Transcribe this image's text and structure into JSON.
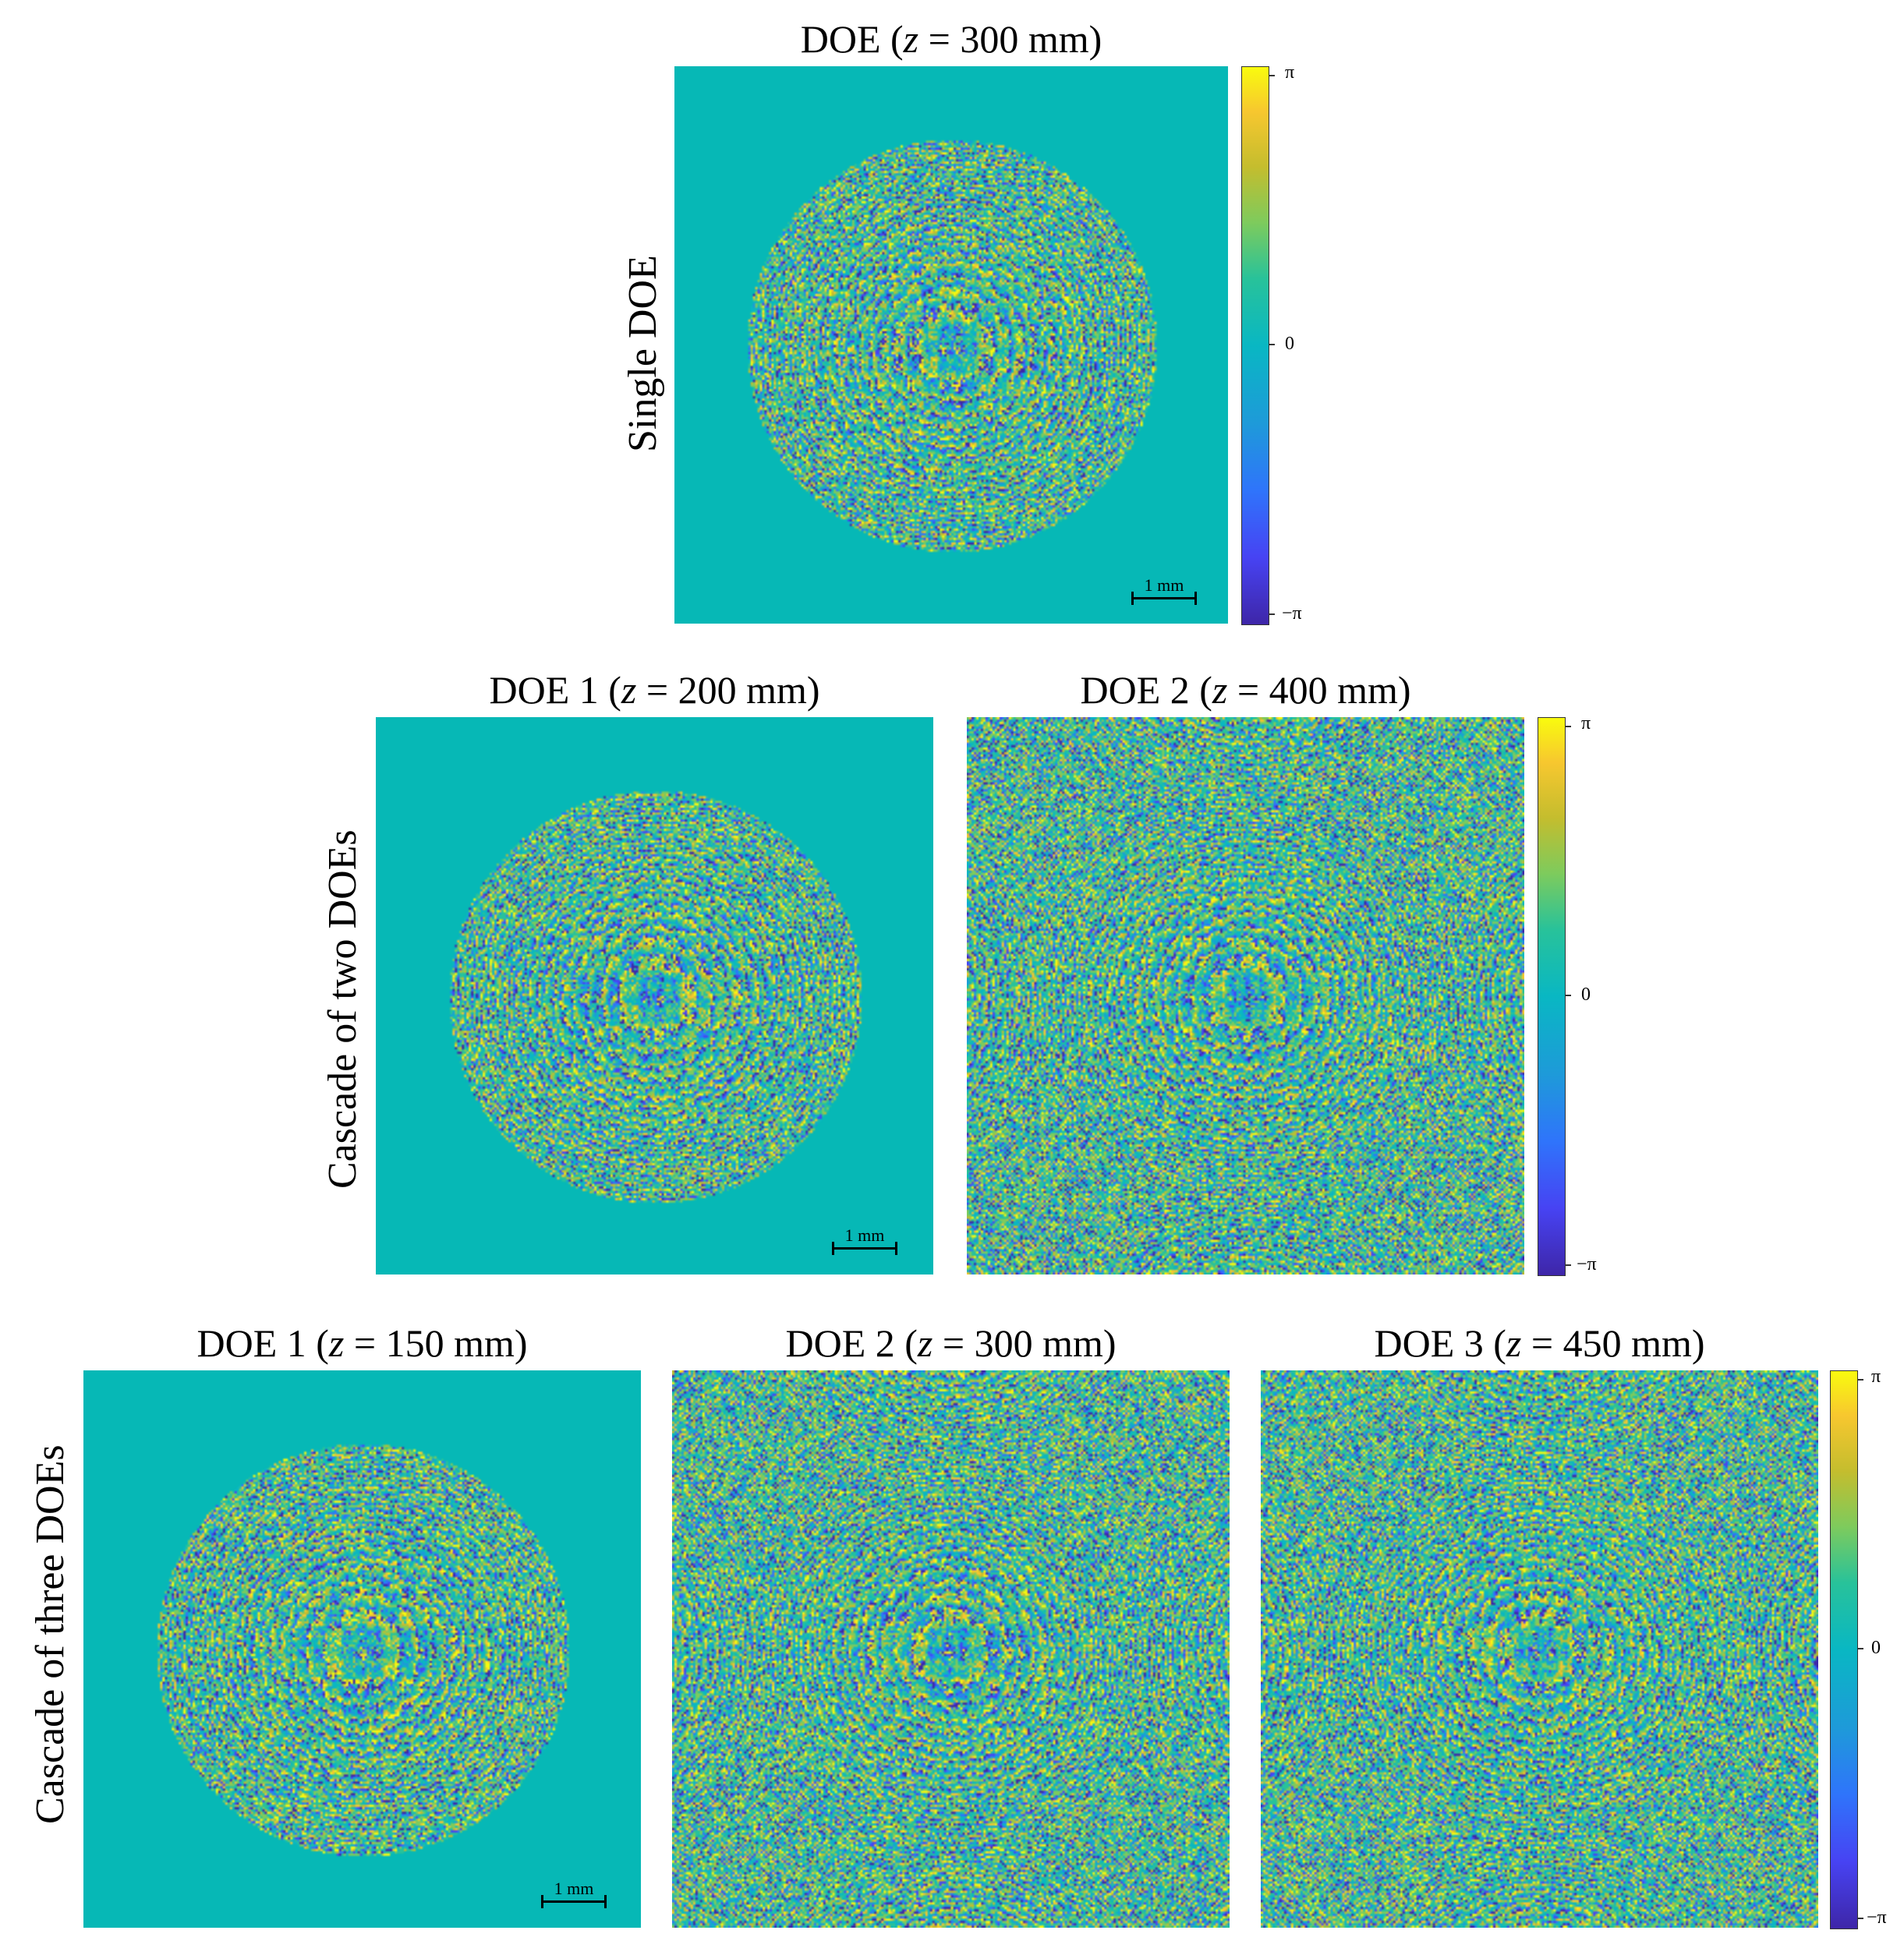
{
  "rows": [
    {
      "label": "Single DOE",
      "panels": [
        {
          "name": "DOE",
          "z_label": "z",
          "z_value": "= 300 mm",
          "pattern": "disk",
          "colorbar": true,
          "scalebar": "1 mm"
        }
      ]
    },
    {
      "label": "Cascade of two DOEs",
      "panels": [
        {
          "name": "DOE 1",
          "z_label": "z",
          "z_value": "= 200 mm",
          "pattern": "disk",
          "scalebar": "1 mm"
        },
        {
          "name": "DOE 2",
          "z_label": "z",
          "z_value": "= 400 mm",
          "pattern": "full",
          "colorbar": true
        }
      ]
    },
    {
      "label": "Cascade of three DOEs",
      "panels": [
        {
          "name": "DOE 1",
          "z_label": "z",
          "z_value": "= 150 mm",
          "pattern": "disk",
          "scalebar": "1 mm"
        },
        {
          "name": "DOE 2",
          "z_label": "z",
          "z_value": "= 300 mm",
          "pattern": "full"
        },
        {
          "name": "DOE 3",
          "z_label": "z",
          "z_value": "= 450 mm",
          "pattern": "full",
          "colorbar": true
        }
      ]
    }
  ],
  "colorbar": {
    "max_label": "π",
    "mid_label": "0",
    "min_label": "−π",
    "colormap": "parula",
    "colors": [
      "#3e26a8",
      "#4743f3",
      "#2f74fb",
      "#1e9ad9",
      "#09b7c3",
      "#28c29a",
      "#7dcb5d",
      "#c4bd2e",
      "#f7c72f",
      "#f9fb0e"
    ]
  },
  "background_phase_color": "#06b8b6"
}
